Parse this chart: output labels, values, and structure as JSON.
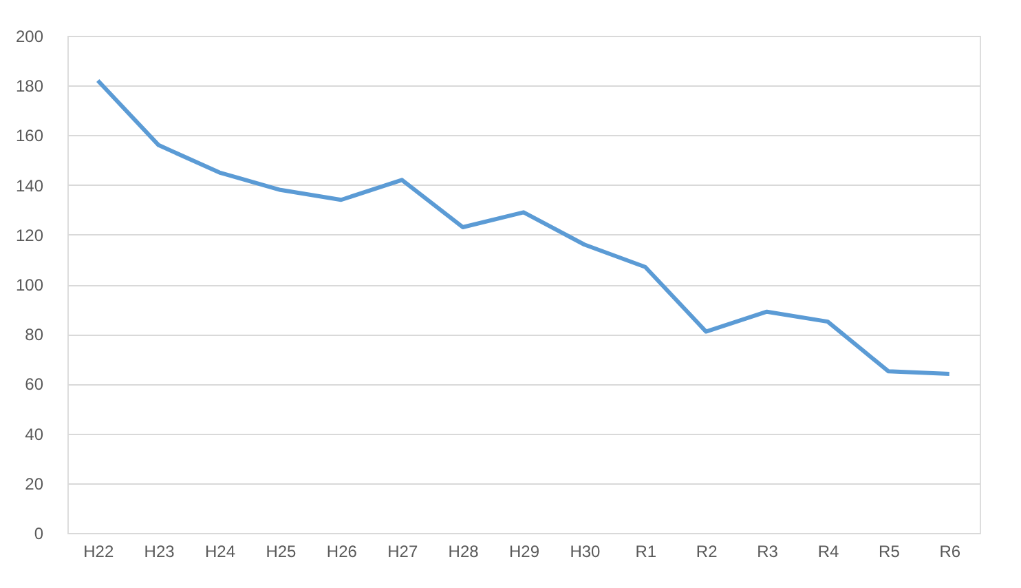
{
  "chart_data": {
    "type": "line",
    "categories": [
      "H22",
      "H23",
      "H24",
      "H25",
      "H26",
      "H27",
      "H28",
      "H29",
      "H30",
      "R1",
      "R2",
      "R3",
      "R4",
      "R5",
      "R6"
    ],
    "series": [
      {
        "color": "#5b9bd5",
        "values": [
          182,
          156,
          145,
          138,
          134,
          142,
          123,
          129,
          116,
          107,
          81,
          89,
          85,
          65,
          64
        ]
      }
    ],
    "ylim": [
      0,
      200
    ],
    "yticks": [
      0,
      20,
      40,
      60,
      80,
      100,
      120,
      140,
      160,
      180,
      200
    ],
    "grid": "y",
    "legend": false,
    "marker": "none",
    "line_style": "solid"
  }
}
